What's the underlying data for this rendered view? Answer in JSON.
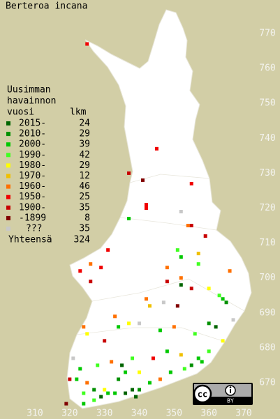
{
  "title": "Berteroa incana",
  "legend": {
    "heading": [
      "Uusimman",
      "havainnon",
      "vuosi"
    ],
    "count_header": "lkm",
    "items": [
      {
        "label": "2015-",
        "count": 24,
        "color": "#006400"
      },
      {
        "label": "2010-",
        "count": 29,
        "color": "#009000"
      },
      {
        "label": "2000-",
        "count": 39,
        "color": "#00c800"
      },
      {
        "label": "1990-",
        "count": 42,
        "color": "#40ff20"
      },
      {
        "label": "1980-",
        "count": 29,
        "color": "#ffff00"
      },
      {
        "label": "1970-",
        "count": 12,
        "color": "#f0c000"
      },
      {
        "label": "1960-",
        "count": 46,
        "color": "#ff7000"
      },
      {
        "label": "1950-",
        "count": 25,
        "color": "#f00000"
      },
      {
        "label": "1900-",
        "count": 35,
        "color": "#c80000"
      },
      {
        "label": "-1899",
        "count": 8,
        "color": "#800000"
      },
      {
        "label": "???",
        "count": 35,
        "color": "#c8c8c8"
      }
    ],
    "total_label": "Yhteensä",
    "total": 324
  },
  "axes": {
    "easting_ticks": [
      310,
      320,
      330,
      340,
      350,
      360,
      370
    ],
    "northing_ticks": [
      770,
      760,
      750,
      740,
      730,
      720,
      710,
      700,
      690,
      680,
      670
    ]
  },
  "squares": [
    [
      325,
      767,
      7
    ],
    [
      345,
      737,
      7
    ],
    [
      337,
      730,
      8
    ],
    [
      341,
      728,
      9
    ],
    [
      355,
      727,
      7
    ],
    [
      342,
      721,
      7
    ],
    [
      342,
      720,
      7
    ],
    [
      337,
      717,
      2
    ],
    [
      352,
      719,
      10
    ],
    [
      354,
      715,
      6
    ],
    [
      355,
      715,
      8
    ],
    [
      359,
      712,
      8
    ],
    [
      331,
      708,
      7
    ],
    [
      351,
      708,
      3
    ],
    [
      352,
      706,
      2
    ],
    [
      357,
      707,
      5
    ],
    [
      348,
      703,
      6
    ],
    [
      326,
      699,
      8
    ],
    [
      323,
      702,
      7
    ],
    [
      326,
      704,
      6
    ],
    [
      329,
      703,
      7
    ],
    [
      348,
      699,
      8
    ],
    [
      352,
      700,
      6
    ],
    [
      352,
      698,
      0
    ],
    [
      366,
      702,
      6
    ],
    [
      363,
      695,
      3
    ],
    [
      364,
      694,
      2
    ],
    [
      365,
      693,
      1
    ],
    [
      342,
      694,
      6
    ],
    [
      343,
      692,
      5
    ],
    [
      351,
      692,
      9
    ],
    [
      347,
      693,
      10
    ],
    [
      355,
      697,
      8
    ],
    [
      360,
      697,
      4
    ],
    [
      357,
      704,
      3
    ],
    [
      337,
      687,
      4
    ],
    [
      340,
      687,
      10
    ],
    [
      333,
      689,
      6
    ],
    [
      334,
      686,
      2
    ],
    [
      324,
      686,
      6
    ],
    [
      325,
      684,
      4
    ],
    [
      330,
      682,
      8
    ],
    [
      346,
      685,
      2
    ],
    [
      350,
      686,
      6
    ],
    [
      356,
      684,
      3
    ],
    [
      360,
      687,
      1
    ],
    [
      362,
      686,
      0
    ],
    [
      367,
      688,
      10
    ],
    [
      364,
      682,
      4
    ],
    [
      360,
      679,
      3
    ],
    [
      357,
      677,
      2
    ],
    [
      352,
      678,
      5
    ],
    [
      348,
      679,
      2
    ],
    [
      344,
      677,
      7
    ],
    [
      338,
      677,
      3
    ],
    [
      335,
      675,
      0
    ],
    [
      332,
      676,
      6
    ],
    [
      328,
      675,
      3
    ],
    [
      323,
      674,
      2
    ],
    [
      321,
      677,
      10
    ],
    [
      322,
      671,
      2
    ],
    [
      325,
      670,
      6
    ],
    [
      327,
      668,
      1
    ],
    [
      330,
      668,
      4
    ],
    [
      333,
      667,
      2
    ],
    [
      336,
      667,
      0
    ],
    [
      338,
      668,
      0
    ],
    [
      339,
      666,
      0
    ],
    [
      340,
      668,
      1
    ],
    [
      343,
      670,
      2
    ],
    [
      346,
      671,
      6
    ],
    [
      349,
      673,
      2
    ],
    [
      353,
      674,
      3
    ],
    [
      355,
      675,
      1
    ],
    [
      358,
      676,
      2
    ],
    [
      319,
      664,
      9
    ],
    [
      324,
      664,
      2
    ],
    [
      327,
      665,
      3
    ],
    [
      329,
      666,
      0
    ],
    [
      331,
      667,
      2
    ],
    [
      320,
      671,
      8
    ],
    [
      324,
      667,
      3
    ],
    [
      334,
      671,
      1
    ],
    [
      336,
      673,
      2
    ],
    [
      340,
      673,
      4
    ]
  ],
  "license": {
    "icon": "cc",
    "label": "BY"
  }
}
